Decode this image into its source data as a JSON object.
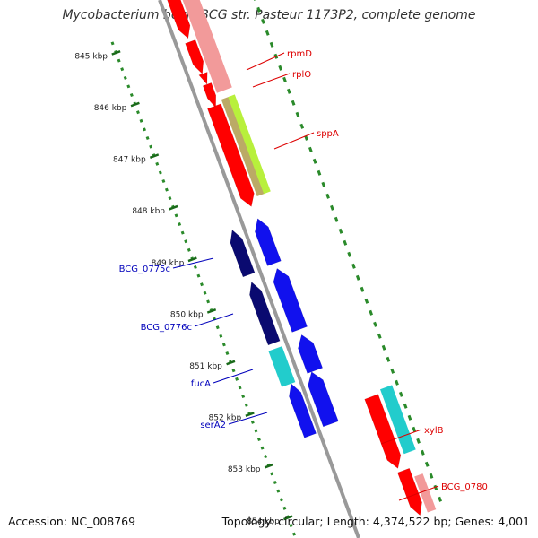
{
  "title": "Mycobacterium bovis BCG str. Pasteur 1173P2, complete genome",
  "footer": {
    "accession": "Accession: NC_008769",
    "summary": "Topology: circular; Length: 4,374,522 bp; Genes: 4,001"
  },
  "colors": {
    "backbone": "#999999",
    "tick_minor": "#2a8a2a",
    "tick_major": "#1a6a1a",
    "forward_red": "#ff0000",
    "forward_pink": "#f29a9a",
    "lime": "#b8f03c",
    "olive": "#bbaa66",
    "navy": "#0a0a70",
    "blue": "#1111ee",
    "cyan": "#22cccc",
    "label_red": "#dd0000",
    "label_blue": "#0000bb",
    "ruler_text": "#222222"
  },
  "ruler": {
    "ticks": [
      {
        "label": "845 kbp"
      },
      {
        "label": "846 kbp"
      },
      {
        "label": "847 kbp"
      },
      {
        "label": "848 kbp"
      },
      {
        "label": "849 kbp"
      },
      {
        "label": "850 kbp"
      },
      {
        "label": "851 kbp"
      },
      {
        "label": "852 kbp"
      },
      {
        "label": "853 kbp"
      },
      {
        "label": "854 kbp"
      }
    ]
  },
  "genes": [
    {
      "label": "rpmD",
      "group": "forward"
    },
    {
      "label": "rplO",
      "group": "forward"
    },
    {
      "label": "sppA",
      "group": "forward"
    },
    {
      "label": "BCG_0775c",
      "group": "reverse"
    },
    {
      "label": "BCG_0776c",
      "group": "reverse"
    },
    {
      "label": "fucA",
      "group": "reverse"
    },
    {
      "label": "serA2",
      "group": "reverse"
    },
    {
      "label": "xylB",
      "group": "forward"
    },
    {
      "label": "BCG_0780",
      "group": "forward"
    }
  ]
}
